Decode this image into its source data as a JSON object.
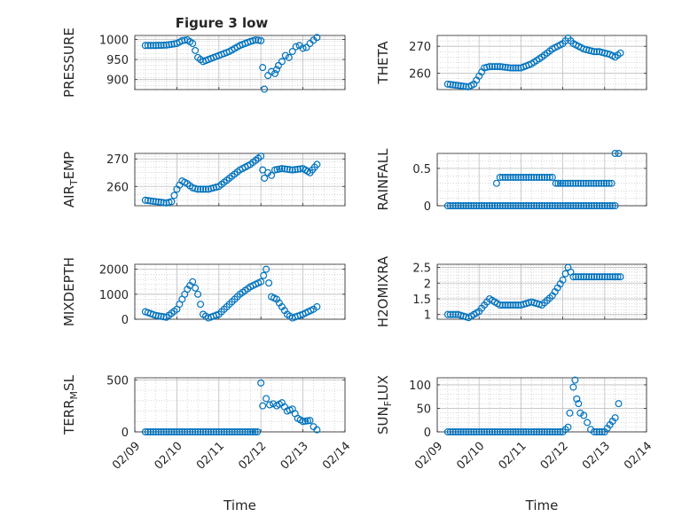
{
  "figure": {
    "title": "Figure 3 low",
    "marker_color": "#0072bd",
    "bg_color": "#ffffff",
    "grid_color": "#bdbdbd",
    "axis_color": "#262626"
  },
  "chart_data": [
    {
      "type": "scatter",
      "ylabel": "PRESSURE",
      "ylabel_sub": "",
      "ylabel_tail": "",
      "ylim": [
        875,
        1010
      ],
      "yticks": [
        900,
        950,
        1000
      ],
      "ytick_labels": [
        "900",
        "950",
        "1000"
      ],
      "xlim": [
        "02/09",
        "02/14"
      ],
      "xtick_labels": [],
      "xlabel": "",
      "grid": "dotted",
      "points": [
        [
          "02/09 06:00",
          985
        ],
        [
          "02/09 12:00",
          985
        ],
        [
          "02/09 18:00",
          986
        ],
        [
          "02/10 00:00",
          990
        ],
        [
          "02/10 03:00",
          997
        ],
        [
          "02/10 06:00",
          999
        ],
        [
          "02/10 09:00",
          990
        ],
        [
          "02/10 12:00",
          955
        ],
        [
          "02/10 15:00",
          945
        ],
        [
          "02/10 18:00",
          950
        ],
        [
          "02/11 00:00",
          960
        ],
        [
          "02/11 06:00",
          970
        ],
        [
          "02/11 12:00",
          985
        ],
        [
          "02/11 18:00",
          995
        ],
        [
          "02/11 21:00",
          999
        ],
        [
          "02/12 00:00",
          997
        ],
        [
          "02/12 01:00",
          930
        ],
        [
          "02/12 02:00",
          876
        ],
        [
          "02/12 04:00",
          910
        ],
        [
          "02/12 06:00",
          920
        ],
        [
          "02/12 08:00",
          915
        ],
        [
          "02/12 09:00",
          925
        ],
        [
          "02/12 10:00",
          935
        ],
        [
          "02/12 12:00",
          945
        ],
        [
          "02/12 14:00",
          960
        ],
        [
          "02/12 16:00",
          955
        ],
        [
          "02/12 18:00",
          970
        ],
        [
          "02/12 20:00",
          982
        ],
        [
          "02/12 22:00",
          985
        ],
        [
          "02/13 00:00",
          978
        ],
        [
          "02/13 02:00",
          980
        ],
        [
          "02/13 04:00",
          990
        ],
        [
          "02/13 06:00",
          998
        ],
        [
          "02/13 08:00",
          1005
        ]
      ]
    },
    {
      "type": "scatter",
      "ylabel": "THETA",
      "ylabel_sub": "",
      "ylabel_tail": "",
      "ylim": [
        254,
        274
      ],
      "yticks": [
        260,
        270
      ],
      "ytick_labels": [
        "260",
        "270"
      ],
      "xlim": [
        "02/09",
        "02/14"
      ],
      "xtick_labels": [],
      "xlabel": "",
      "grid": "dotted",
      "points": [
        [
          "02/09 06:00",
          256
        ],
        [
          "02/09 12:00",
          255.5
        ],
        [
          "02/09 18:00",
          255
        ],
        [
          "02/09 21:00",
          256
        ],
        [
          "02/10 00:00",
          259
        ],
        [
          "02/10 03:00",
          262
        ],
        [
          "02/10 06:00",
          262.5
        ],
        [
          "02/10 12:00",
          262.5
        ],
        [
          "02/10 18:00",
          262
        ],
        [
          "02/11 00:00",
          262
        ],
        [
          "02/11 06:00",
          263.5
        ],
        [
          "02/11 12:00",
          266
        ],
        [
          "02/11 18:00",
          269
        ],
        [
          "02/12 00:00",
          271
        ],
        [
          "02/12 03:00",
          273
        ],
        [
          "02/12 06:00",
          271
        ],
        [
          "02/12 12:00",
          269
        ],
        [
          "02/12 18:00",
          268
        ],
        [
          "02/12 21:00",
          268
        ],
        [
          "02/13 00:00",
          267.5
        ],
        [
          "02/13 03:00",
          267
        ],
        [
          "02/13 06:00",
          266
        ],
        [
          "02/13 09:00",
          267.5
        ]
      ]
    },
    {
      "type": "scatter",
      "ylabel": "AIR",
      "ylabel_sub": "T",
      "ylabel_tail": "EMP",
      "ylim": [
        253,
        272
      ],
      "yticks": [
        260,
        270
      ],
      "ytick_labels": [
        "260",
        "270"
      ],
      "xlim": [
        "02/09",
        "02/14"
      ],
      "xtick_labels": [],
      "xlabel": "",
      "grid": "dotted",
      "points": [
        [
          "02/09 06:00",
          255
        ],
        [
          "02/09 12:00",
          254.5
        ],
        [
          "02/09 18:00",
          254
        ],
        [
          "02/09 21:00",
          254.5
        ],
        [
          "02/10 00:00",
          259
        ],
        [
          "02/10 03:00",
          262
        ],
        [
          "02/10 06:00",
          261
        ],
        [
          "02/10 09:00",
          259.5
        ],
        [
          "02/10 12:00",
          259
        ],
        [
          "02/10 18:00",
          259
        ],
        [
          "02/11 00:00",
          260
        ],
        [
          "02/11 06:00",
          263
        ],
        [
          "02/11 12:00",
          266
        ],
        [
          "02/11 18:00",
          268
        ],
        [
          "02/12 00:00",
          271
        ],
        [
          "02/12 01:00",
          266
        ],
        [
          "02/12 02:00",
          263
        ],
        [
          "02/12 04:00",
          265
        ],
        [
          "02/12 06:00",
          264
        ],
        [
          "02/12 08:00",
          266
        ],
        [
          "02/12 12:00",
          266.5
        ],
        [
          "02/12 18:00",
          266
        ],
        [
          "02/13 00:00",
          266.5
        ],
        [
          "02/13 04:00",
          265
        ],
        [
          "02/13 08:00",
          268
        ]
      ]
    },
    {
      "type": "scatter",
      "ylabel": "RAINFALL",
      "ylabel_sub": "",
      "ylabel_tail": "",
      "ylim": [
        0,
        0.7
      ],
      "yticks": [
        0,
        0.5
      ],
      "ytick_labels": [
        "0",
        "0.5"
      ],
      "xlim": [
        "02/09",
        "02/14"
      ],
      "xtick_labels": [],
      "xlabel": "",
      "grid": "dotted",
      "points": [
        [
          "02/09 06:00",
          0
        ],
        [
          "02/09 12:00",
          0
        ],
        [
          "02/09 18:00",
          0
        ],
        [
          "02/10 00:00",
          0
        ],
        [
          "02/10 06:00",
          0
        ],
        [
          "02/10 12:00",
          0
        ],
        [
          "02/10 18:00",
          0
        ],
        [
          "02/11 00:00",
          0
        ],
        [
          "02/11 06:00",
          0
        ],
        [
          "02/11 12:00",
          0
        ],
        [
          "02/11 18:00",
          0
        ],
        [
          "02/12 00:00",
          0
        ],
        [
          "02/12 06:00",
          0
        ],
        [
          "02/12 12:00",
          0
        ],
        [
          "02/12 18:00",
          0
        ],
        [
          "02/13 00:00",
          0
        ],
        [
          "02/13 06:00",
          0
        ],
        [
          "02/10 10:00",
          0.3
        ],
        [
          "02/10 12:00",
          0.38
        ],
        [
          "02/11 18:00",
          0.38
        ],
        [
          "02/11 20:00",
          0.3
        ],
        [
          "02/12 00:00",
          0.3
        ],
        [
          "02/13 04:00",
          0.3
        ],
        [
          "02/13 06:00",
          0.7
        ],
        [
          "02/13 08:00",
          0.7
        ]
      ]
    },
    {
      "type": "scatter",
      "ylabel": "MIXDEPTH",
      "ylabel_sub": "",
      "ylabel_tail": "",
      "ylim": [
        0,
        2200
      ],
      "yticks": [
        0,
        1000,
        2000
      ],
      "ytick_labels": [
        "0",
        "1000",
        "2000"
      ],
      "xlim": [
        "02/09",
        "02/14"
      ],
      "xtick_labels": [],
      "xlabel": "",
      "grid": "dotted",
      "points": [
        [
          "02/09 06:00",
          300
        ],
        [
          "02/09 12:00",
          150
        ],
        [
          "02/09 18:00",
          80
        ],
        [
          "02/10 00:00",
          400
        ],
        [
          "02/10 03:00",
          800
        ],
        [
          "02/10 06:00",
          1200
        ],
        [
          "02/10 09:00",
          1500
        ],
        [
          "02/10 12:00",
          1000
        ],
        [
          "02/10 15:00",
          200
        ],
        [
          "02/10 18:00",
          50
        ],
        [
          "02/11 00:00",
          200
        ],
        [
          "02/11 06:00",
          600
        ],
        [
          "02/11 12:00",
          1000
        ],
        [
          "02/11 18:00",
          1300
        ],
        [
          "02/12 00:00",
          1500
        ],
        [
          "02/12 03:00",
          2000
        ],
        [
          "02/12 06:00",
          900
        ],
        [
          "02/12 09:00",
          800
        ],
        [
          "02/12 12:00",
          500
        ],
        [
          "02/12 15:00",
          200
        ],
        [
          "02/12 18:00",
          50
        ],
        [
          "02/13 00:00",
          200
        ],
        [
          "02/13 06:00",
          400
        ],
        [
          "02/13 08:00",
          500
        ]
      ]
    },
    {
      "type": "scatter",
      "ylabel": "H2OMIXRA",
      "ylabel_sub": "",
      "ylabel_tail": "",
      "ylim": [
        0.85,
        2.6
      ],
      "yticks": [
        1,
        1.5,
        2,
        2.5
      ],
      "ytick_labels": [
        "1",
        "1.5",
        "2",
        "2.5"
      ],
      "xlim": [
        "02/09",
        "02/14"
      ],
      "xtick_labels": [],
      "xlabel": "",
      "grid": "dotted",
      "points": [
        [
          "02/09 06:00",
          1
        ],
        [
          "02/09 12:00",
          1
        ],
        [
          "02/09 18:00",
          0.9
        ],
        [
          "02/10 00:00",
          1.1
        ],
        [
          "02/10 06:00",
          1.5
        ],
        [
          "02/10 12:00",
          1.3
        ],
        [
          "02/10 18:00",
          1.3
        ],
        [
          "02/11 00:00",
          1.3
        ],
        [
          "02/11 06:00",
          1.4
        ],
        [
          "02/11 12:00",
          1.3
        ],
        [
          "02/11 18:00",
          1.6
        ],
        [
          "02/12 00:00",
          2.1
        ],
        [
          "02/12 03:00",
          2.5
        ],
        [
          "02/12 06:00",
          2.2
        ],
        [
          "02/12 12:00",
          2.2
        ],
        [
          "02/12 18:00",
          2.2
        ],
        [
          "02/13 00:00",
          2.2
        ],
        [
          "02/13 06:00",
          2.2
        ],
        [
          "02/13 09:00",
          2.2
        ]
      ]
    },
    {
      "type": "scatter",
      "ylabel": "TERR",
      "ylabel_sub": "M",
      "ylabel_tail": "SL",
      "ylim": [
        0,
        520
      ],
      "yticks": [
        0,
        500
      ],
      "ytick_labels": [
        "0",
        "500"
      ],
      "xlim": [
        "02/09",
        "02/14"
      ],
      "xtick_labels": [
        "02/09",
        "02/10",
        "02/11",
        "02/12",
        "02/13",
        "02/14"
      ],
      "xlabel": "Time",
      "grid": "dotted",
      "points": [
        [
          "02/09 06:00",
          0
        ],
        [
          "02/09 12:00",
          0
        ],
        [
          "02/09 18:00",
          0
        ],
        [
          "02/10 00:00",
          0
        ],
        [
          "02/10 06:00",
          0
        ],
        [
          "02/10 12:00",
          0
        ],
        [
          "02/10 18:00",
          0
        ],
        [
          "02/11 00:00",
          0
        ],
        [
          "02/11 06:00",
          0
        ],
        [
          "02/11 12:00",
          0
        ],
        [
          "02/11 18:00",
          0
        ],
        [
          "02/11 22:00",
          0
        ],
        [
          "02/12 00:00",
          470
        ],
        [
          "02/12 01:00",
          250
        ],
        [
          "02/12 03:00",
          320
        ],
        [
          "02/12 05:00",
          260
        ],
        [
          "02/12 07:00",
          270
        ],
        [
          "02/12 09:00",
          250
        ],
        [
          "02/12 12:00",
          280
        ],
        [
          "02/12 15:00",
          200
        ],
        [
          "02/12 18:00",
          220
        ],
        [
          "02/12 21:00",
          130
        ],
        [
          "02/13 00:00",
          100
        ],
        [
          "02/13 04:00",
          110
        ],
        [
          "02/13 06:00",
          50
        ],
        [
          "02/13 08:00",
          20
        ]
      ]
    },
    {
      "type": "scatter",
      "ylabel": "SUN",
      "ylabel_sub": "F",
      "ylabel_tail": "LUX",
      "ylim": [
        0,
        115
      ],
      "yticks": [
        0,
        50,
        100
      ],
      "ytick_labels": [
        "0",
        "50",
        "100"
      ],
      "xlim": [
        "02/09",
        "02/14"
      ],
      "xtick_labels": [
        "02/09",
        "02/10",
        "02/11",
        "02/12",
        "02/13",
        "02/14"
      ],
      "xlabel": "Time",
      "grid": "dotted",
      "points": [
        [
          "02/09 06:00",
          0
        ],
        [
          "02/09 12:00",
          0
        ],
        [
          "02/09 18:00",
          0
        ],
        [
          "02/10 00:00",
          0
        ],
        [
          "02/10 06:00",
          0
        ],
        [
          "02/10 12:00",
          0
        ],
        [
          "02/10 18:00",
          0
        ],
        [
          "02/11 00:00",
          0
        ],
        [
          "02/11 06:00",
          0
        ],
        [
          "02/11 12:00",
          0
        ],
        [
          "02/11 18:00",
          0
        ],
        [
          "02/12 00:00",
          0
        ],
        [
          "02/12 03:00",
          10
        ],
        [
          "02/12 04:00",
          40
        ],
        [
          "02/12 06:00",
          95
        ],
        [
          "02/12 07:00",
          110
        ],
        [
          "02/12 08:00",
          70
        ],
        [
          "02/12 09:00",
          60
        ],
        [
          "02/12 10:00",
          40
        ],
        [
          "02/12 12:00",
          35
        ],
        [
          "02/12 14:00",
          20
        ],
        [
          "02/12 16:00",
          5
        ],
        [
          "02/12 18:00",
          0
        ],
        [
          "02/13 00:00",
          0
        ],
        [
          "02/13 06:00",
          30
        ],
        [
          "02/13 08:00",
          60
        ]
      ]
    }
  ]
}
